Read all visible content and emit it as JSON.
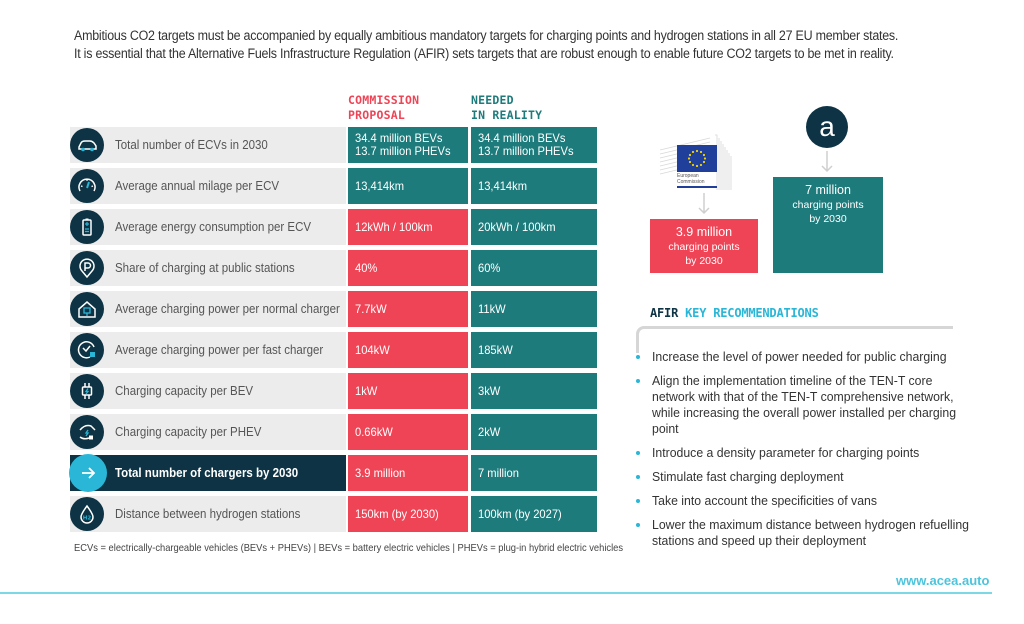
{
  "intro": {
    "line1": "Ambitious CO2 targets must be accompanied by equally ambitious mandatory targets for charging points and hydrogen stations in all 27 EU member states.",
    "line2": "It is essential that the Alternative Fuels Infrastructure Regulation (AFIR) sets targets that are robust enough to enable future CO2 targets to be met in reality."
  },
  "table": {
    "col_proposal": "COMMISSION\nPROPOSAL",
    "col_needed": "NEEDED\nIN REALITY",
    "rows": [
      {
        "icon": "car-icon",
        "label": "Total number of ECVs in 2030",
        "proposal": "34.4 million BEVs\n13.7 million PHEVs",
        "needed": "34.4 million BEVs\n13.7 million PHEVs",
        "proposal_color": "teal"
      },
      {
        "icon": "speedometer-icon",
        "label": "Average annual milage per ECV",
        "proposal": "13,414km",
        "needed": "13,414km",
        "proposal_color": "teal"
      },
      {
        "icon": "battery-icon",
        "label": "Average energy consumption per ECV",
        "proposal": "12kWh / 100km",
        "needed": "20kWh / 100km",
        "proposal_color": "red"
      },
      {
        "icon": "parking-pin-icon",
        "label": "Share of charging at public stations",
        "proposal": "40%",
        "needed": "60%",
        "proposal_color": "red"
      },
      {
        "icon": "home-plug-icon",
        "label": "Average charging power per normal charger",
        "proposal": "7.7kW",
        "needed": "11kW",
        "proposal_color": "red"
      },
      {
        "icon": "clock-plug-icon",
        "label": "Average charging power per fast charger",
        "proposal": "104kW",
        "needed": "185kW",
        "proposal_color": "red"
      },
      {
        "icon": "plug-icon",
        "label": "Charging capacity per BEV",
        "proposal": "1kW",
        "needed": "3kW",
        "proposal_color": "red"
      },
      {
        "icon": "hand-plug-icon",
        "label": "Charging capacity per PHEV",
        "proposal": "0.66kW",
        "needed": "2kW",
        "proposal_color": "red"
      },
      {
        "icon": "arrow-right-icon",
        "label": "Total number of chargers by 2030",
        "proposal": "3.9 million",
        "needed": "7 million",
        "proposal_color": "red",
        "highlight": true
      },
      {
        "icon": "hydrogen-drop-icon",
        "label": "Distance between hydrogen stations",
        "proposal": "150km (by 2030)",
        "needed": "100km (by 2027)",
        "proposal_color": "red"
      }
    ],
    "footnote": "ECVs = electrically-chargeable vehicles (BEVs + PHEVs) | BEVs = battery electric vehicles | PHEVs = plug-in hybrid electric vehicles"
  },
  "comparison": {
    "ec_logo_caption": "European\nCommission",
    "acea_logo_letter": "a",
    "proposal_box": {
      "big": "3.9 million",
      "line2": "charging points",
      "line3": "by 2030"
    },
    "needed_box": {
      "big": "7 million",
      "line2": "charging points",
      "line3": "by 2030"
    }
  },
  "recommendations": {
    "title_a": "AFIR",
    "title_b": "KEY RECOMMENDATIONS",
    "items": [
      "Increase the level of power needed for public charging",
      "Align the implementation timeline of the TEN-T core network with that of the TEN-T comprehensive network, while increasing the overall power installed per charging point",
      "Introduce a density parameter for charging points",
      "Stimulate fast charging deployment",
      "Take into account the specificities of vans",
      "Lower the maximum distance between hydrogen refuelling stations and speed up their deployment"
    ]
  },
  "footer": {
    "url": "www.acea.auto"
  },
  "colors": {
    "proposal": "#ee4455",
    "needed": "#1e7b7c",
    "navy": "#0d3344",
    "accent": "#2ab6d6"
  }
}
